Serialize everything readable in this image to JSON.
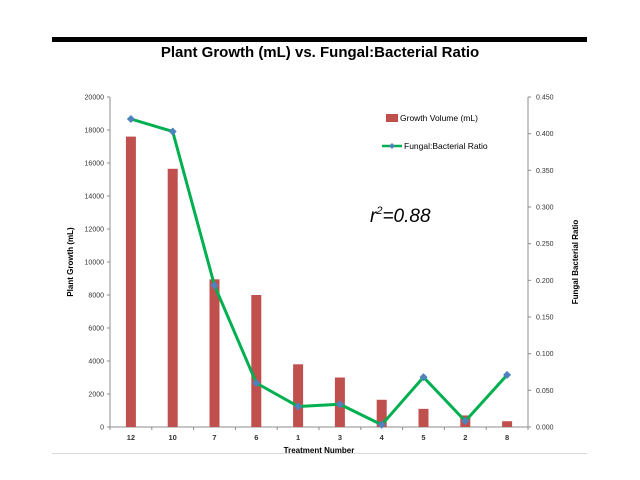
{
  "chart_data": {
    "type": "bar+line",
    "title": "Plant Growth  (mL) vs. Fungal:Bacterial Ratio",
    "xlabel": "Treatment Number",
    "ylabel": "Plant Growth (mL)",
    "y2label": "Fungal Bacterial Ratio",
    "categories": [
      "12",
      "10",
      "7",
      "6",
      "1",
      "3",
      "4",
      "5",
      "2",
      "8"
    ],
    "ylim": [
      0,
      20000
    ],
    "y_ticks": [
      "0",
      "2000",
      "4000",
      "6000",
      "8000",
      "10000",
      "12000",
      "14000",
      "16000",
      "18000",
      "20000"
    ],
    "y2lim": [
      0,
      0.45
    ],
    "y2_ticks": [
      "0.000",
      "0.050",
      "0.100",
      "0.150",
      "0.200",
      "0.250",
      "0.300",
      "0.350",
      "0.400",
      "0.450"
    ],
    "series": [
      {
        "name": "Growth Volume (mL)",
        "kind": "bar",
        "axis": "left",
        "color": "#c0504d",
        "values": [
          17600,
          15650,
          8950,
          8000,
          3800,
          3000,
          1650,
          1100,
          700,
          350
        ]
      },
      {
        "name": "Fungal:Bacterial Ratio",
        "kind": "line",
        "axis": "right",
        "color": "#00b050",
        "marker_color": "#4f81bd",
        "values": [
          0.42,
          0.403,
          0.193,
          0.06,
          0.028,
          0.031,
          0.003,
          0.068,
          0.008,
          0.071
        ]
      }
    ],
    "annotation": {
      "base": "r",
      "sup": "2",
      "rest": "=0.88"
    },
    "legend_position": "top-right",
    "grid": false
  }
}
